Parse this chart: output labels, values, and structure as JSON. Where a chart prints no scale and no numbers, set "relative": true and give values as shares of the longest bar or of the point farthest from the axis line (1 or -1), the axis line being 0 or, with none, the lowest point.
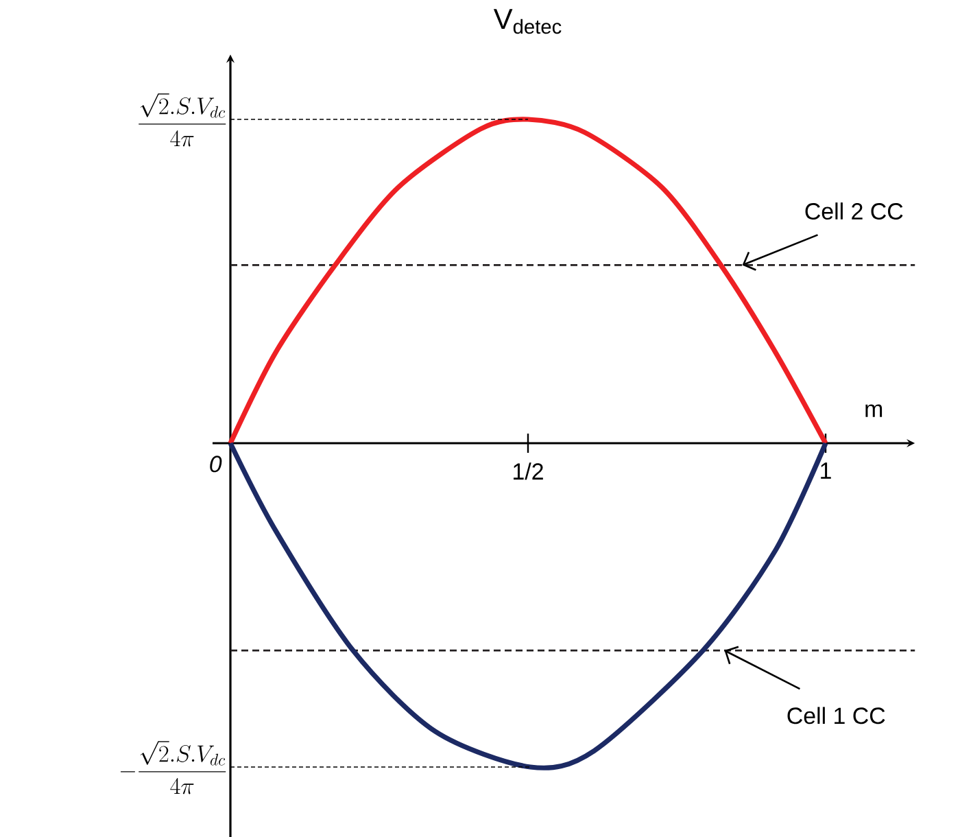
{
  "chart_data": {
    "type": "line",
    "title": "V$_{detec}$",
    "xlabel": "m",
    "relative": true,
    "xlim": [
      -0.03,
      1.15
    ],
    "xticks": [
      {
        "value": 0,
        "label": "0"
      },
      {
        "value": 0.5,
        "label": "1/2"
      },
      {
        "value": 1,
        "label": "1"
      }
    ],
    "series": [
      {
        "color": "#ee2024",
        "x": [
          0,
          0.076,
          0.176,
          0.282,
          0.42,
          0.5,
          0.595,
          0.725,
          0.824,
          0.916,
          1
        ],
        "values": [
          0,
          0.28,
          0.55,
          0.79,
          0.97,
          1,
          0.96,
          0.79,
          0.55,
          0.28,
          0
        ]
      },
      {
        "color": "#1c2a64",
        "x": [
          0,
          0.076,
          0.206,
          0.344,
          0.504,
          0.611,
          0.794,
          0.916,
          1
        ],
        "values": [
          0,
          -0.27,
          -0.64,
          -0.89,
          -1,
          -0.95,
          -0.64,
          -0.33,
          0
        ]
      }
    ],
    "ref_lines": [
      {
        "axis": "y",
        "value": 0.55,
        "color": "#231f20",
        "line_style": "dashed"
      },
      {
        "axis": "y",
        "value": -0.64,
        "color": "#231f20",
        "line_style": "dashed"
      }
    ],
    "annotations": [
      {
        "text": "Cell 2 CC",
        "x": 0.86,
        "y": 0.55
      },
      {
        "text": "Cell 1 CC",
        "x": 0.83,
        "y": -0.64
      },
      {
        "text": "\\frac{\\sqrt{2}.S.V_{dc}}{4\\pi}",
        "x": 0.5,
        "y": 1
      },
      {
        "text": "-\\frac{\\sqrt{2}.S.V_{dc}}{4\\pi}",
        "x": 0.504,
        "y": -1
      }
    ]
  }
}
